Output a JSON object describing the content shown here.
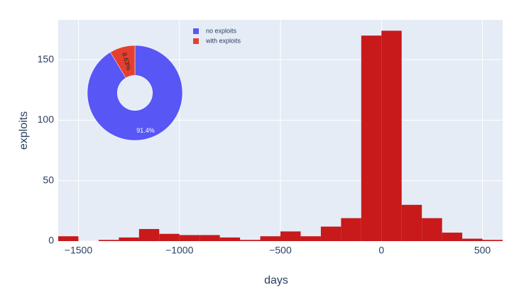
{
  "chart_data": [
    {
      "type": "histogram",
      "xlabel": "days",
      "ylabel": "exploits",
      "bins": [
        -1600,
        -1500,
        -1400,
        -1300,
        -1200,
        -1100,
        -1000,
        -900,
        -800,
        -700,
        -600,
        -500,
        -400,
        -300,
        -200,
        -100,
        0,
        100,
        200,
        300,
        400,
        500,
        600
      ],
      "values": [
        4,
        0,
        1,
        3,
        10,
        6,
        5,
        5,
        3,
        1,
        4,
        8,
        4,
        12,
        19,
        170,
        174,
        30,
        19,
        7,
        2,
        1
      ],
      "color": "#c8191b",
      "xlim": [
        -1600,
        600
      ],
      "xticks": [
        {
          "value": -1500,
          "label": "−1500"
        },
        {
          "value": -1000,
          "label": "−1000"
        },
        {
          "value": -500,
          "label": "−500"
        },
        0,
        500
      ],
      "ylim": [
        0,
        183
      ],
      "yticks": [
        0,
        50,
        100,
        150
      ],
      "grid": true
    },
    {
      "type": "pie",
      "categories": [
        "no exploits",
        "with exploits"
      ],
      "values": [
        91.4,
        8.63
      ],
      "value_labels": [
        "91.4%",
        "8.63%"
      ],
      "colors": [
        "#5856f5",
        "#e5402f"
      ],
      "hole": 0.37
    }
  ]
}
